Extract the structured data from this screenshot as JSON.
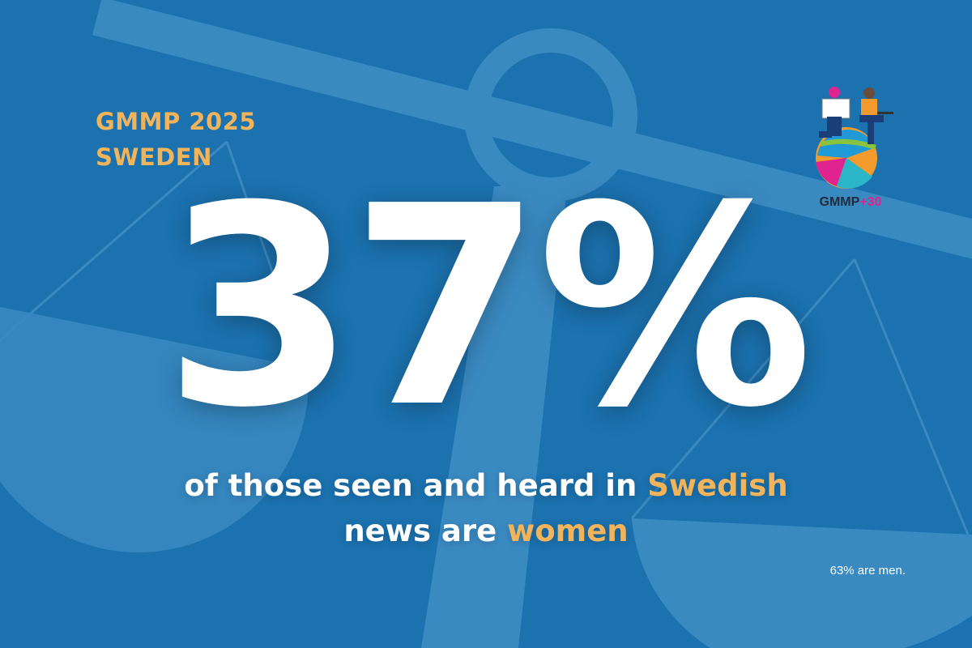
{
  "heading": {
    "line1": "GMMP 2025",
    "line2": "SWEDEN"
  },
  "stat": {
    "value": "37%"
  },
  "caption": {
    "part1": "of those seen and heard in ",
    "highlight1": "Swedish",
    "part2": "news are ",
    "highlight2": "women"
  },
  "footnote": "63% are men.",
  "logo": {
    "text_main": "GMMP",
    "text_accent": "+30"
  },
  "colors": {
    "background": "#1b72af",
    "accent": "#f2b45a",
    "text": "#ffffff",
    "logo_accent": "#e0238f"
  },
  "icons": {
    "background": "scales-of-justice-icon",
    "logo": "gmmp-globe-people-icon"
  }
}
